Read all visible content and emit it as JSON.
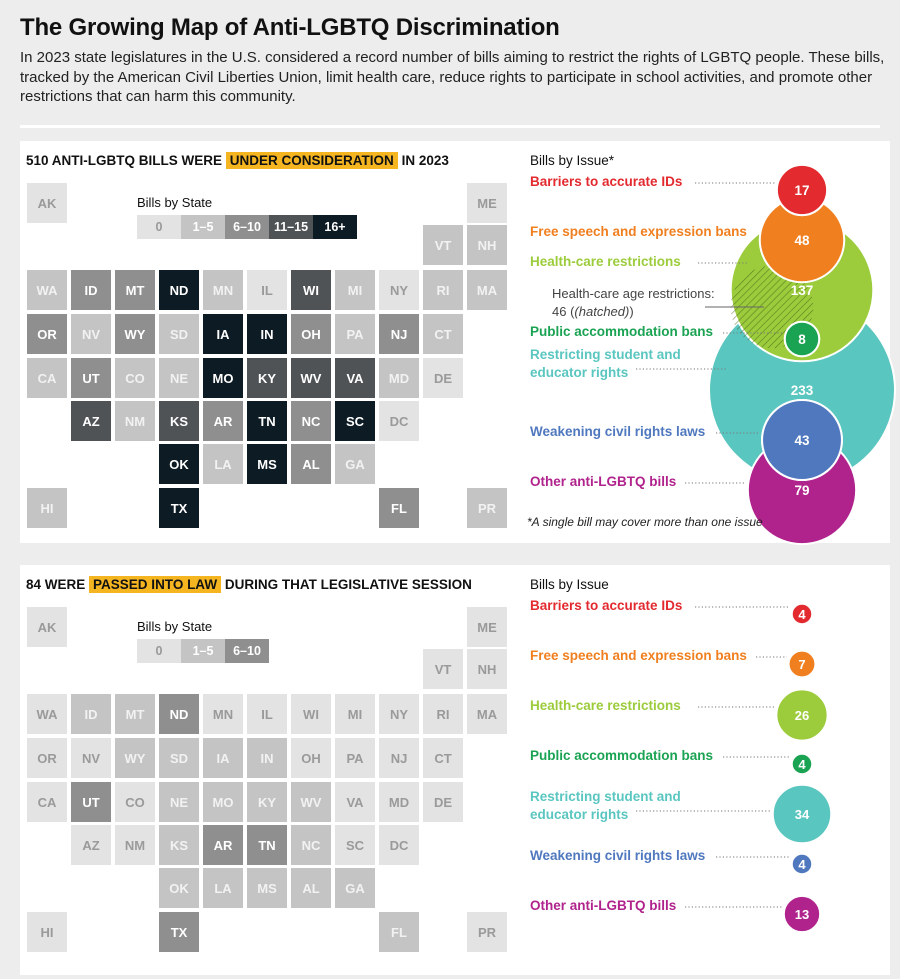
{
  "header": {
    "title": "The Growing Map of Anti-LGBTQ Discrimination",
    "description": "In 2023 state legislatures in the U.S. considered a record number of bills aiming to restrict the rights of LGBTQ people. These bills, tracked by the American Civil Liberties Union, limit health care, reduce rights to participate in school activities, and promote other restrictions that can harm this community."
  },
  "colors": {
    "bin0": "#e3e3e3",
    "bin1": "#c4c4c4",
    "bin2": "#8f8f8f",
    "bin3": "#4f5356",
    "bin4": "#0d1b24",
    "ids": "#e22a2f",
    "speech": "#f07f1f",
    "health": "#9ccc3c",
    "accommodation": "#1aa352",
    "student": "#5ac6c0",
    "civil": "#4f78be",
    "other": "#b0238c"
  },
  "panels": [
    {
      "title_pre": "510 ANTI-LGBTQ BILLS WERE",
      "title_highlight": "UNDER CONSIDERATION",
      "title_post": "IN 2023",
      "legend_title": "Bills by State",
      "legend_bins": [
        "0",
        "1–5",
        "6–10",
        "11–15",
        "16+"
      ],
      "issues_title": "Bills by Issue*",
      "footnote": "*A single bill may cover more than one issue",
      "subnote": "Health-care age restrictions: 46 (hatched)",
      "subnote_label": "Health-care age restrictions:",
      "subnote_value": "46",
      "subnote_value_suffix": "(hatched)",
      "states": {
        "AK": 0,
        "ME": 0,
        "VT": 1,
        "NH": 1,
        "WA": 1,
        "ID": 2,
        "MT": 2,
        "ND": 4,
        "MN": 1,
        "IL": 0,
        "WI": 3,
        "MI": 1,
        "NY": 0,
        "RI": 1,
        "MA": 1,
        "OR": 2,
        "NV": 1,
        "WY": 2,
        "SD": 1,
        "IA": 4,
        "IN": 4,
        "OH": 2,
        "PA": 1,
        "NJ": 2,
        "CT": 1,
        "CA": 1,
        "UT": 2,
        "CO": 1,
        "NE": 1,
        "MO": 4,
        "KY": 3,
        "WV": 3,
        "VA": 3,
        "MD": 1,
        "DE": 0,
        "AZ": 3,
        "NM": 1,
        "KS": 3,
        "AR": 2,
        "TN": 4,
        "NC": 2,
        "SC": 4,
        "DC": 0,
        "OK": 4,
        "LA": 1,
        "MS": 4,
        "AL": 2,
        "GA": 1,
        "HI": 1,
        "TX": 4,
        "FL": 2,
        "PR": 1
      }
    },
    {
      "title_pre": "84 WERE",
      "title_highlight": "PASSED INTO LAW",
      "title_post": "DURING THAT LEGISLATIVE SESSION",
      "legend_title": "Bills by State",
      "legend_bins": [
        "0",
        "1–5",
        "6–10"
      ],
      "issues_title": "Bills by Issue",
      "states": {
        "AK": 0,
        "ME": 0,
        "VT": 0,
        "NH": 0,
        "WA": 0,
        "ID": 1,
        "MT": 1,
        "ND": 2,
        "MN": 0,
        "IL": 0,
        "WI": 0,
        "MI": 0,
        "NY": 0,
        "RI": 0,
        "MA": 0,
        "OR": 0,
        "NV": 0,
        "WY": 1,
        "SD": 1,
        "IA": 1,
        "IN": 1,
        "OH": 0,
        "PA": 0,
        "NJ": 0,
        "CT": 0,
        "CA": 0,
        "UT": 2,
        "CO": 0,
        "NE": 1,
        "MO": 1,
        "KY": 1,
        "WV": 1,
        "VA": 0,
        "MD": 0,
        "DE": 0,
        "AZ": 0,
        "NM": 0,
        "KS": 1,
        "AR": 2,
        "TN": 2,
        "NC": 1,
        "SC": 0,
        "DC": 0,
        "OK": 1,
        "LA": 1,
        "MS": 1,
        "AL": 1,
        "GA": 1,
        "HI": 0,
        "TX": 2,
        "FL": 1,
        "PR": 0
      }
    }
  ],
  "chart_data": [
    {
      "type": "bubble",
      "title": "510 ANTI-LGBTQ BILLS WERE UNDER CONSIDERATION IN 2023",
      "categories": [
        "Barriers to accurate IDs",
        "Free speech and expression bans",
        "Health-care restrictions",
        "Public accommodation bans",
        "Restricting student and educator rights",
        "Weakening civil rights laws",
        "Other anti-LGBTQ bills"
      ],
      "values": [
        17,
        48,
        137,
        8,
        233,
        43,
        79
      ],
      "sub_values": {
        "Health-care age restrictions": 46
      }
    },
    {
      "type": "bubble",
      "title": "84 WERE PASSED INTO LAW DURING THAT LEGISLATIVE SESSION",
      "categories": [
        "Barriers to accurate IDs",
        "Free speech and expression bans",
        "Health-care restrictions",
        "Public accommodation bans",
        "Restricting student and educator rights",
        "Weakening civil rights laws",
        "Other anti-LGBTQ bills"
      ],
      "values": [
        4,
        7,
        26,
        4,
        34,
        4,
        13
      ]
    }
  ],
  "issue_labels": [
    {
      "key": "ids",
      "line1": "Barriers to accurate IDs",
      "line2": ""
    },
    {
      "key": "speech",
      "line1": "Free speech and expression bans",
      "line2": ""
    },
    {
      "key": "health",
      "line1": "Health-care restrictions",
      "line2": ""
    },
    {
      "key": "accommodation",
      "line1": "Public accommodation bans",
      "line2": ""
    },
    {
      "key": "student",
      "line1": "Restricting student and",
      "line2": "educator rights"
    },
    {
      "key": "civil",
      "line1": "Weakening civil rights laws",
      "line2": ""
    },
    {
      "key": "other",
      "line1": "Other anti-LGBTQ bills",
      "line2": ""
    }
  ]
}
